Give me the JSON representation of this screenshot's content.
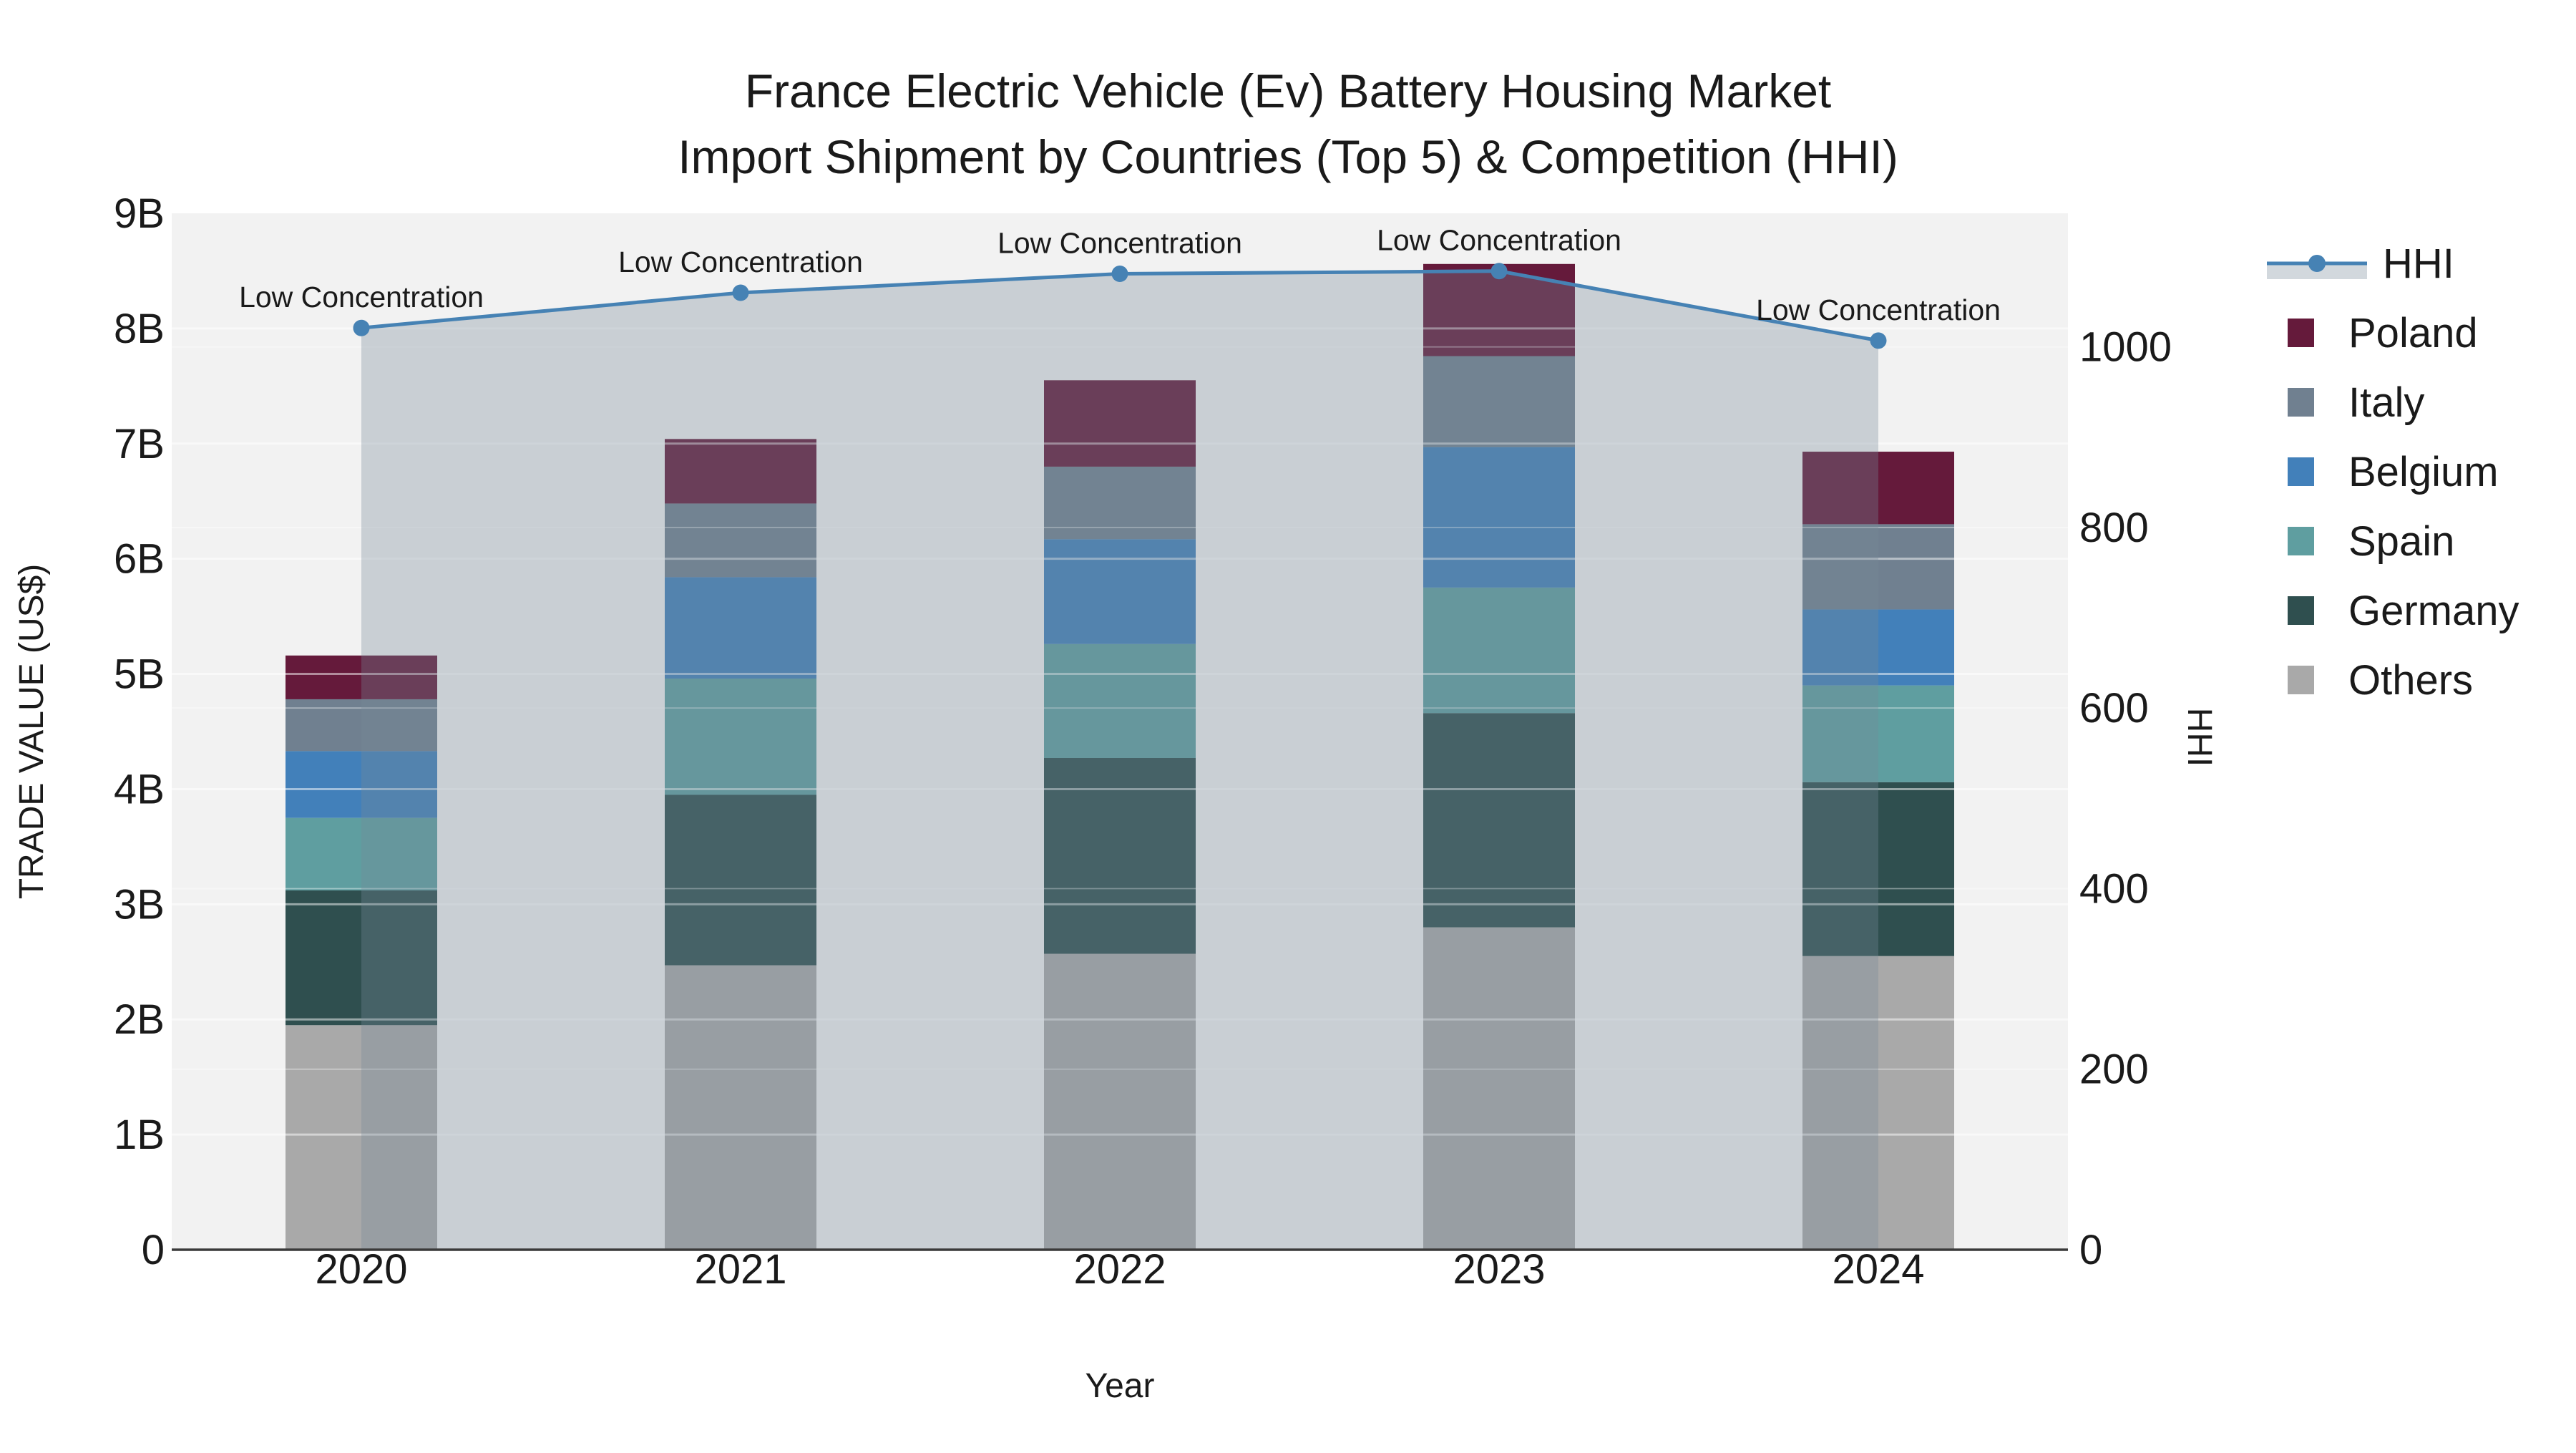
{
  "chart_data": {
    "type": "bar-line-combo",
    "title_line1": "France Electric Vehicle (Ev) Battery Housing Market",
    "title_line2": "Import Shipment by Countries (Top 5) & Competition (HHI)",
    "categories": [
      "2020",
      "2021",
      "2022",
      "2023",
      "2024"
    ],
    "value_unit": "billions US$",
    "series": [
      {
        "name": "Others",
        "color": "#A9A9A9",
        "values": [
          1.95,
          2.47,
          2.57,
          2.8,
          2.55
        ]
      },
      {
        "name": "Germany",
        "color": "#2F4F4F",
        "values": [
          1.17,
          1.48,
          1.7,
          1.86,
          1.51
        ]
      },
      {
        "name": "Spain",
        "color": "#5F9EA0",
        "values": [
          0.63,
          1.01,
          0.99,
          1.09,
          0.84
        ]
      },
      {
        "name": "Belgium",
        "color": "#4280BA",
        "values": [
          0.58,
          0.88,
          0.91,
          1.22,
          0.66
        ]
      },
      {
        "name": "Italy",
        "color": "#708090",
        "values": [
          0.45,
          0.64,
          0.63,
          0.79,
          0.74
        ]
      },
      {
        "name": "Poland",
        "color": "#651A3B",
        "values": [
          0.38,
          0.56,
          0.75,
          0.8,
          0.63
        ]
      }
    ],
    "bar_totals": [
      5.16,
      7.04,
      7.55,
      8.56,
      6.93
    ],
    "line_series": {
      "name": "HHI",
      "color": "#4682B4",
      "area_fill": "rgba(119,136,153,0.33)",
      "values": [
        1021,
        1060,
        1081,
        1084,
        1007
      ]
    },
    "annotations": [
      "Low Concentration",
      "Low Concentration",
      "Low Concentration",
      "Low Concentration",
      "Low Concentration"
    ],
    "x_axis": {
      "label": "Year"
    },
    "left_axis": {
      "label": "TRADE VALUE (US$)",
      "ticks": [
        "0",
        "1B",
        "2B",
        "3B",
        "4B",
        "5B",
        "6B",
        "7B",
        "8B",
        "9B"
      ],
      "range": [
        0,
        9
      ]
    },
    "right_axis": {
      "label": "HHI",
      "ticks": [
        "0",
        "200",
        "400",
        "600",
        "800",
        "1000"
      ],
      "range": [
        0,
        1148
      ]
    },
    "legend": [
      "HHI",
      "Poland",
      "Italy",
      "Belgium",
      "Spain",
      "Germany",
      "Others"
    ],
    "plot_background": "#F2F2F2",
    "axis_line_color": "#3A3A3A",
    "grid_color": "#FFFFFF"
  }
}
